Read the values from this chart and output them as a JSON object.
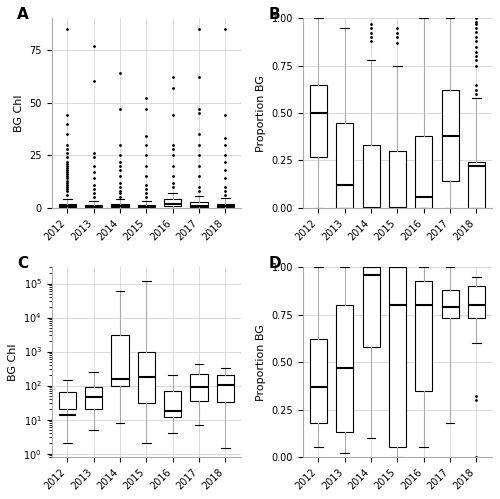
{
  "years": [
    2012,
    2013,
    2014,
    2015,
    2016,
    2017,
    2018
  ],
  "panel_labels": [
    "A",
    "B",
    "C",
    "D"
  ],
  "A": {
    "ylabel": "BG Chl",
    "ylim": [
      0,
      90
    ],
    "yticks": [
      0,
      25,
      50,
      75
    ],
    "boxes": [
      {
        "year": 2012,
        "q1": 0.3,
        "median": 0.8,
        "q3": 2.0,
        "whislo": 0.0,
        "whishi": 4.0,
        "fliers": [
          6,
          8,
          9,
          10,
          11,
          12,
          13,
          14,
          15,
          16,
          17,
          18,
          19,
          20,
          21,
          22,
          24,
          26,
          28,
          30,
          35,
          40,
          44,
          85
        ]
      },
      {
        "year": 2013,
        "q1": 0.2,
        "median": 0.5,
        "q3": 1.5,
        "whislo": 0.0,
        "whishi": 3.5,
        "fliers": [
          5,
          7,
          9,
          11,
          14,
          17,
          20,
          24,
          26,
          60,
          77
        ]
      },
      {
        "year": 2014,
        "q1": 0.3,
        "median": 0.7,
        "q3": 1.8,
        "whislo": 0.0,
        "whishi": 4.0,
        "fliers": [
          5,
          7,
          8,
          10,
          12,
          15,
          18,
          20,
          22,
          25,
          30,
          47,
          64
        ]
      },
      {
        "year": 2015,
        "q1": 0.2,
        "median": 0.5,
        "q3": 1.5,
        "whislo": 0.0,
        "whishi": 3.5,
        "fliers": [
          5,
          7,
          9,
          11,
          15,
          20,
          25,
          30,
          34,
          47,
          52
        ]
      },
      {
        "year": 2016,
        "q1": 0.8,
        "median": 2.0,
        "q3": 4.0,
        "whislo": 0.0,
        "whishi": 7.0,
        "fliers": [
          10,
          12,
          15,
          20,
          25,
          28,
          30,
          44,
          57,
          62
        ]
      },
      {
        "year": 2017,
        "q1": 0.3,
        "median": 1.0,
        "q3": 3.0,
        "whislo": 0.0,
        "whishi": 5.5,
        "fliers": [
          8,
          10,
          15,
          20,
          25,
          30,
          35,
          45,
          47,
          62,
          85
        ]
      },
      {
        "year": 2018,
        "q1": 0.2,
        "median": 0.7,
        "q3": 2.0,
        "whislo": 0.0,
        "whishi": 4.5,
        "fliers": [
          6,
          8,
          10,
          14,
          18,
          22,
          25,
          30,
          33,
          44,
          85
        ]
      }
    ]
  },
  "B": {
    "ylabel": "Proportion BG",
    "ylim": [
      0,
      1.0
    ],
    "yticks": [
      0.0,
      0.25,
      0.5,
      0.75,
      1.0
    ],
    "boxes": [
      {
        "year": 2012,
        "q1": 0.27,
        "median": 0.5,
        "q3": 0.65,
        "whislo": 0.0,
        "whishi": 1.0,
        "fliers": []
      },
      {
        "year": 2013,
        "q1": 0.0,
        "median": 0.12,
        "q3": 0.45,
        "whislo": 0.0,
        "whishi": 0.95,
        "fliers": []
      },
      {
        "year": 2014,
        "q1": 0.0,
        "median": 0.0,
        "q3": 0.33,
        "whislo": 0.0,
        "whishi": 0.78,
        "fliers": [
          0.88,
          0.9,
          0.92,
          0.95,
          0.97
        ]
      },
      {
        "year": 2015,
        "q1": 0.0,
        "median": 0.0,
        "q3": 0.3,
        "whislo": 0.0,
        "whishi": 0.75,
        "fliers": [
          0.87,
          0.9,
          0.92,
          0.95
        ]
      },
      {
        "year": 2016,
        "q1": 0.0,
        "median": 0.06,
        "q3": 0.38,
        "whislo": 0.0,
        "whishi": 1.0,
        "fliers": []
      },
      {
        "year": 2017,
        "q1": 0.14,
        "median": 0.38,
        "q3": 0.62,
        "whislo": 0.0,
        "whishi": 1.0,
        "fliers": []
      },
      {
        "year": 2018,
        "q1": 0.0,
        "median": 0.22,
        "q3": 0.24,
        "whislo": 0.0,
        "whishi": 0.58,
        "fliers": [
          0.6,
          0.62,
          0.65,
          0.75,
          0.78,
          0.8,
          0.82,
          0.85,
          0.88,
          0.9,
          0.93,
          0.95,
          0.97,
          0.98,
          1.0
        ]
      }
    ]
  },
  "C": {
    "ylabel": "BG Chl",
    "log": true,
    "ylim_log": [
      0.8,
      300000
    ],
    "yticks_log": [
      1,
      10,
      100,
      1000,
      10000,
      100000
    ],
    "boxes": [
      {
        "year": 2012,
        "q1": 20,
        "median": 14,
        "q3": 65,
        "whislo": 2,
        "whishi": 150,
        "fliers": []
      },
      {
        "year": 2013,
        "q1": 20,
        "median": 45,
        "q3": 90,
        "whislo": 5,
        "whishi": 250,
        "fliers": []
      },
      {
        "year": 2014,
        "q1": 100,
        "median": 160,
        "q3": 3000,
        "whislo": 8,
        "whishi": 60000,
        "fliers": []
      },
      {
        "year": 2015,
        "q1": 30,
        "median": 180,
        "q3": 1000,
        "whislo": 2,
        "whishi": 120000,
        "fliers": []
      },
      {
        "year": 2016,
        "q1": 12,
        "median": 18,
        "q3": 70,
        "whislo": 4,
        "whishi": 200,
        "fliers": []
      },
      {
        "year": 2017,
        "q1": 35,
        "median": 90,
        "q3": 220,
        "whislo": 7,
        "whishi": 420,
        "fliers": []
      },
      {
        "year": 2018,
        "q1": 32,
        "median": 105,
        "q3": 210,
        "whislo": 1.5,
        "whishi": 320,
        "fliers": []
      }
    ]
  },
  "D": {
    "ylabel": "Proportion BG",
    "ylim": [
      0,
      1.0
    ],
    "yticks": [
      0.0,
      0.25,
      0.5,
      0.75,
      1.0
    ],
    "boxes": [
      {
        "year": 2012,
        "q1": 0.18,
        "median": 0.37,
        "q3": 0.62,
        "whislo": 0.05,
        "whishi": 1.0,
        "fliers": []
      },
      {
        "year": 2013,
        "q1": 0.13,
        "median": 0.47,
        "q3": 0.8,
        "whislo": 0.02,
        "whishi": 1.0,
        "fliers": []
      },
      {
        "year": 2014,
        "q1": 0.58,
        "median": 0.96,
        "q3": 1.0,
        "whislo": 0.1,
        "whishi": 1.0,
        "fliers": []
      },
      {
        "year": 2015,
        "q1": 0.05,
        "median": 0.8,
        "q3": 1.0,
        "whislo": 0.0,
        "whishi": 1.0,
        "fliers": []
      },
      {
        "year": 2016,
        "q1": 0.35,
        "median": 0.8,
        "q3": 0.93,
        "whislo": 0.05,
        "whishi": 1.0,
        "fliers": []
      },
      {
        "year": 2017,
        "q1": 0.73,
        "median": 0.79,
        "q3": 0.88,
        "whislo": 0.18,
        "whishi": 1.0,
        "fliers": []
      },
      {
        "year": 2018,
        "q1": 0.73,
        "median": 0.8,
        "q3": 0.9,
        "whislo": 0.6,
        "whishi": 0.95,
        "fliers": [
          0.0,
          0.3,
          0.32
        ]
      }
    ]
  },
  "box_color": "#000000",
  "box_facecolor": "#ffffff",
  "whisker_color": "#aaaaaa",
  "grid_color": "#cccccc",
  "background_color": "#ffffff",
  "tick_label_size": 7,
  "axis_label_size": 8,
  "panel_label_size": 11,
  "box_width": 0.65,
  "flier_size": 2.0
}
